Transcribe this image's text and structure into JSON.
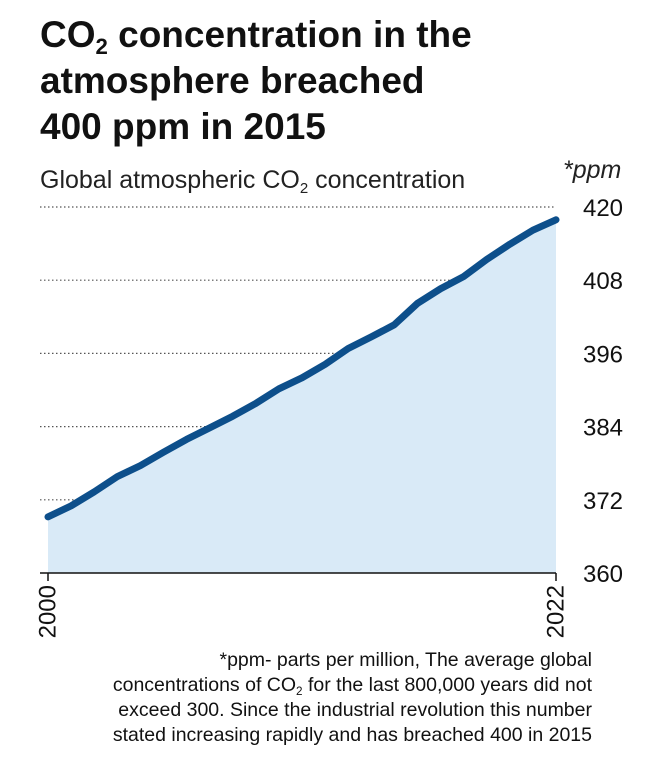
{
  "title": {
    "line1_pre": "CO",
    "line1_sub": "2",
    "line1_post": " concentration in the",
    "line2": "atmosphere breached",
    "line3": "400 ppm in 2015"
  },
  "subtitle": {
    "pre": "Global atmospheric CO",
    "sub": "2",
    "post": " concentration"
  },
  "unit_label": "*ppm",
  "footnote": {
    "line1": "*ppm- parts per million, The average global",
    "line2_pre": "concentrations of CO",
    "line2_sub": "2",
    "line2_post": "  for the last 800,000 years did not",
    "line3": "exceed 300. Since the industrial revolution this number",
    "line4": "stated increasing rapidly and has breached 400 in 2015"
  },
  "colors": {
    "line": "#0d4f8b",
    "fill": "#d9eaf7",
    "grid": "#555555"
  },
  "chart_data": {
    "type": "area",
    "x": [
      2000,
      2001,
      2002,
      2003,
      2004,
      2005,
      2006,
      2007,
      2008,
      2009,
      2010,
      2011,
      2012,
      2013,
      2014,
      2015,
      2016,
      2017,
      2018,
      2019,
      2020,
      2021,
      2022
    ],
    "series": [
      {
        "values": [
          369.2,
          371.0,
          373.3,
          375.8,
          377.6,
          379.8,
          381.9,
          383.8,
          385.7,
          387.8,
          390.2,
          392.0,
          394.2,
          396.8,
          398.7,
          400.7,
          404.2,
          406.6,
          408.6,
          411.4,
          413.9,
          416.2,
          417.9
        ]
      }
    ],
    "x_tick_labels": [
      "2000",
      "2022"
    ],
    "y_ticks": [
      360,
      372,
      384,
      396,
      408,
      420
    ],
    "ylim": [
      360,
      420
    ],
    "xlim": [
      2000,
      2022
    ],
    "grid": "horizontal dotted",
    "y_axis_position": "right"
  }
}
